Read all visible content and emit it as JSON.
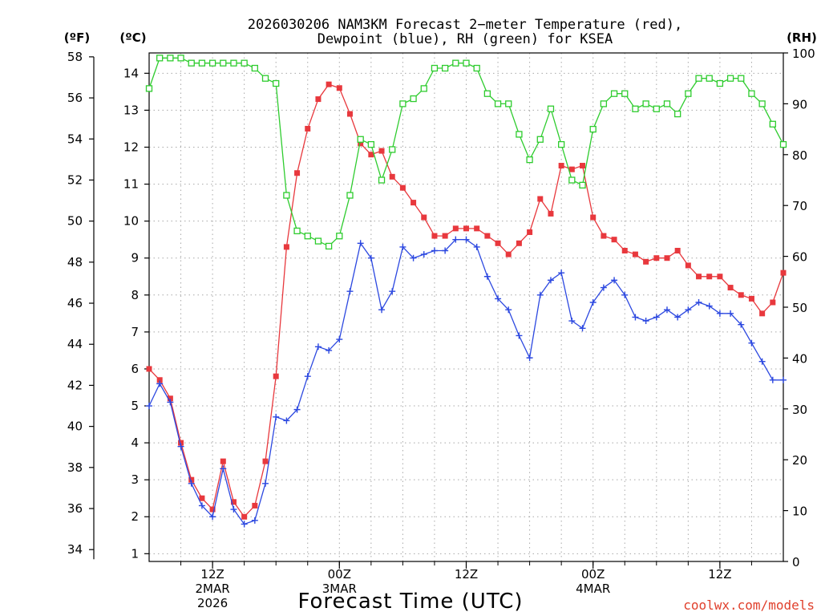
{
  "header": {
    "title_line1": "2026030206 NAM3KM Forecast 2−meter Temperature (red),",
    "title_line2": "Dewpoint (blue), RH (green) for KSEA"
  },
  "units": {
    "fahrenheit": "(ºF)",
    "celsius": "(ºC)",
    "rh": "(RH)"
  },
  "footer": {
    "xaxis_title": "Forecast Time (UTC)",
    "credit": "coolwx.com/models"
  },
  "colors": {
    "temperature": "#e8383d",
    "dewpoint": "#2c48e0",
    "rh": "#2ecc2e"
  },
  "chart_data": {
    "type": "line",
    "title": "2026030206 NAM3KM Forecast 2−meter Temperature (red), Dewpoint (blue), RH (green) for KSEA",
    "xlabel": "Forecast Time (UTC)",
    "x_unit": "forecast hour (valid 2026-03-02 06Z + x)",
    "xlim": [
      0,
      60
    ],
    "x_ticks": [
      {
        "x": 6,
        "labels": [
          "12Z",
          "2MAR",
          "2026"
        ]
      },
      {
        "x": 18,
        "labels": [
          "00Z",
          "3MAR"
        ]
      },
      {
        "x": 30,
        "labels": [
          "12Z"
        ]
      },
      {
        "x": 42,
        "labels": [
          "00Z",
          "4MAR"
        ]
      },
      {
        "x": 54,
        "labels": [
          "12Z"
        ]
      }
    ],
    "left_axis_f": {
      "label": "(ºF)",
      "ticks": [
        34,
        36,
        38,
        40,
        42,
        44,
        46,
        48,
        50,
        52,
        54,
        56,
        58
      ]
    },
    "left_axis_c": {
      "label": "(ºC)",
      "ylim": [
        0.79,
        14.55
      ],
      "ticks": [
        1,
        2,
        3,
        4,
        5,
        6,
        7,
        8,
        9,
        10,
        11,
        12,
        13,
        14
      ]
    },
    "right_axis": {
      "label": "(RH)",
      "ylim": [
        0,
        100
      ],
      "ticks": [
        0,
        10,
        20,
        30,
        40,
        50,
        60,
        70,
        80,
        90,
        100
      ]
    },
    "grid": true,
    "series": [
      {
        "name": "Temperature",
        "axis": "celsius",
        "color": "#e8383d",
        "marker": "filled-square",
        "x": [
          0,
          1,
          2,
          3,
          4,
          5,
          6,
          7,
          8,
          9,
          10,
          11,
          12,
          13,
          14,
          15,
          16,
          17,
          18,
          19,
          20,
          21,
          22,
          23,
          24,
          25,
          26,
          27,
          28,
          29,
          30,
          31,
          32,
          33,
          34,
          35,
          36,
          37,
          38,
          39,
          40,
          41,
          42,
          43,
          44,
          45,
          46,
          47,
          48,
          49,
          50,
          51,
          52,
          53,
          54,
          55,
          56,
          57,
          58,
          59,
          60
        ],
        "values": [
          6.0,
          5.7,
          5.2,
          4.0,
          3.0,
          2.5,
          2.2,
          3.5,
          2.4,
          2.0,
          2.3,
          3.5,
          5.8,
          9.3,
          11.3,
          12.5,
          13.3,
          13.7,
          13.6,
          12.9,
          12.1,
          11.8,
          11.9,
          11.2,
          10.9,
          10.5,
          10.1,
          9.6,
          9.6,
          9.8,
          9.8,
          9.8,
          9.6,
          9.4,
          9.1,
          9.4,
          9.7,
          10.6,
          10.2,
          11.5,
          11.4,
          11.5,
          10.1,
          9.6,
          9.5,
          9.2,
          9.1,
          8.9,
          9.0,
          9.0,
          9.2,
          8.8,
          8.5,
          8.5,
          8.5,
          8.2,
          8.0,
          7.9,
          7.5,
          7.8,
          8.6
        ]
      },
      {
        "name": "Dewpoint",
        "axis": "celsius",
        "color": "#2c48e0",
        "marker": "plus",
        "x": [
          0,
          1,
          2,
          3,
          4,
          5,
          6,
          7,
          8,
          9,
          10,
          11,
          12,
          13,
          14,
          15,
          16,
          17,
          18,
          19,
          20,
          21,
          22,
          23,
          24,
          25,
          26,
          27,
          28,
          29,
          30,
          31,
          32,
          33,
          34,
          35,
          36,
          37,
          38,
          39,
          40,
          41,
          42,
          43,
          44,
          45,
          46,
          47,
          48,
          49,
          50,
          51,
          52,
          53,
          54,
          55,
          56,
          57,
          58,
          59,
          60
        ],
        "values": [
          5.0,
          5.6,
          5.1,
          3.9,
          2.9,
          2.3,
          2.0,
          3.3,
          2.2,
          1.8,
          1.9,
          2.9,
          4.7,
          4.6,
          4.9,
          5.8,
          6.6,
          6.5,
          6.8,
          8.1,
          9.4,
          9.0,
          7.6,
          8.1,
          9.3,
          9.0,
          9.1,
          9.2,
          9.2,
          9.5,
          9.5,
          9.3,
          8.5,
          7.9,
          7.6,
          6.9,
          6.3,
          8.0,
          8.4,
          8.6,
          7.3,
          7.1,
          7.8,
          8.2,
          8.4,
          8.0,
          7.4,
          7.3,
          7.4,
          7.6,
          7.4,
          7.6,
          7.8,
          7.7,
          7.5,
          7.5,
          7.2,
          6.7,
          6.2,
          5.7,
          5.7
        ]
      },
      {
        "name": "RH",
        "axis": "rh",
        "color": "#2ecc2e",
        "marker": "open-square",
        "x": [
          0,
          1,
          2,
          3,
          4,
          5,
          6,
          7,
          8,
          9,
          10,
          11,
          12,
          13,
          14,
          15,
          16,
          17,
          18,
          19,
          20,
          21,
          22,
          23,
          24,
          25,
          26,
          27,
          28,
          29,
          30,
          31,
          32,
          33,
          34,
          35,
          36,
          37,
          38,
          39,
          40,
          41,
          42,
          43,
          44,
          45,
          46,
          47,
          48,
          49,
          50,
          51,
          52,
          53,
          54,
          55,
          56,
          57,
          58,
          59,
          60
        ],
        "values": [
          93,
          99,
          99,
          99,
          98,
          98,
          98,
          98,
          98,
          98,
          97,
          95,
          94,
          72,
          65,
          64,
          63,
          62,
          64,
          72,
          83,
          82,
          75,
          81,
          90,
          91,
          93,
          97,
          97,
          98,
          98,
          97,
          92,
          90,
          90,
          84,
          79,
          83,
          89,
          82,
          75,
          74,
          85,
          90,
          92,
          92,
          89,
          90,
          89,
          90,
          88,
          92,
          95,
          95,
          94,
          95,
          95,
          92,
          90,
          86,
          82
        ]
      }
    ]
  }
}
